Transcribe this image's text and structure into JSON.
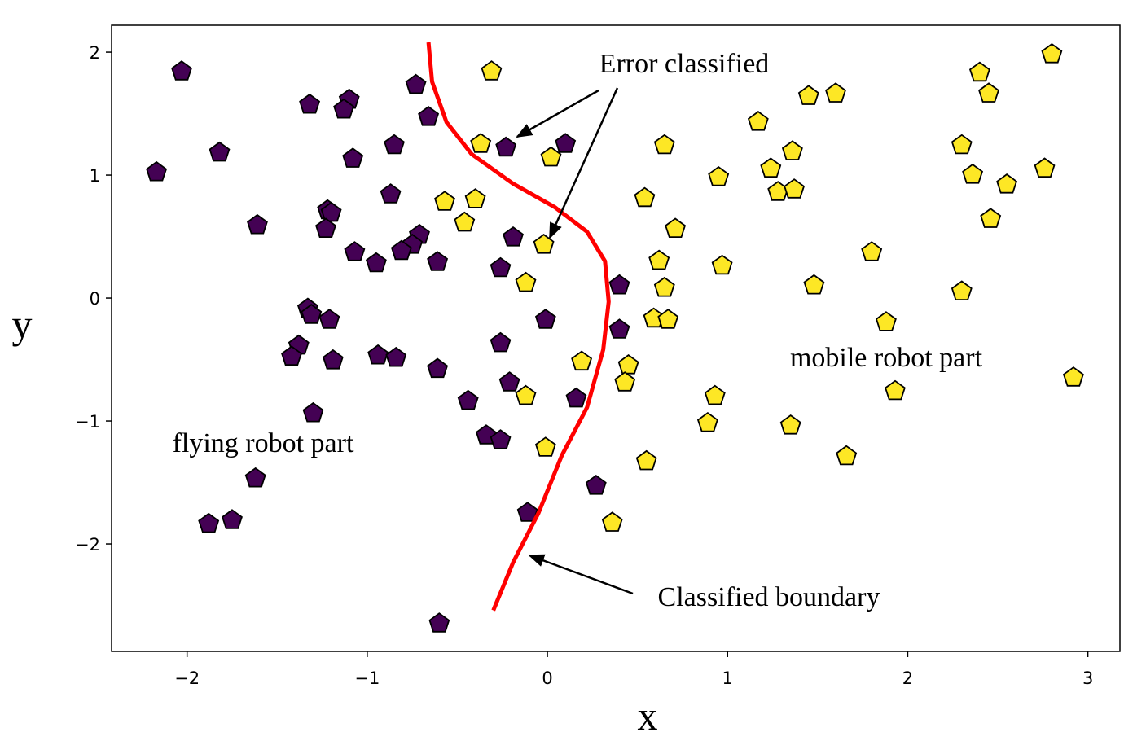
{
  "chart_data": {
    "type": "scatter",
    "x_label": "x",
    "y_label": "y",
    "xlim": [
      -2.419,
      3.178
    ],
    "ylim": [
      -2.874,
      2.219
    ],
    "xticks": [
      {
        "value": -2,
        "label": "−2"
      },
      {
        "value": -1,
        "label": "−1"
      },
      0,
      1,
      2,
      3
    ],
    "yticks": [
      {
        "value": -2,
        "label": "−2"
      },
      {
        "value": -1,
        "label": "−1"
      },
      0,
      1,
      2
    ],
    "annotations": [
      "Error classified",
      "Classified boundary",
      "mobile robot part",
      "flying robot part"
    ],
    "boundary": {
      "color": "#ff0000",
      "x": [
        -0.66,
        -0.64,
        -0.56,
        -0.42,
        -0.19,
        0.04,
        0.22,
        0.32,
        0.34,
        0.31,
        0.22,
        0.08,
        -0.05,
        -0.19,
        -0.3
      ],
      "y": [
        2.08,
        1.76,
        1.43,
        1.17,
        0.93,
        0.74,
        0.54,
        0.3,
        -0.03,
        -0.42,
        -0.89,
        -1.28,
        -1.75,
        -2.15,
        -2.54
      ]
    },
    "series": [
      {
        "color": "#440154",
        "x": [
          -2.03,
          -1.32,
          -1.1,
          -1.13,
          -0.73,
          -0.66,
          -1.82,
          -2.17,
          -0.85,
          -1.08,
          0.1,
          -0.23,
          -0.87,
          -1.22,
          -1.2,
          -1.23,
          -1.61,
          -0.19,
          -0.71,
          -0.75,
          -0.81,
          -1.07,
          -0.95,
          -0.61,
          -0.26,
          0.4,
          -1.33,
          -1.31,
          -1.21,
          -1.38,
          -1.42,
          -0.94,
          -0.84,
          -1.19,
          0.4,
          -0.01,
          -0.26,
          -0.61,
          -0.21,
          0.16,
          -0.44,
          -1.3,
          -0.34,
          -0.26,
          -1.62,
          0.27,
          -1.75,
          -1.88,
          -0.11,
          -0.6
        ],
        "y": [
          1.85,
          1.58,
          1.62,
          1.54,
          1.74,
          1.48,
          1.19,
          1.03,
          1.25,
          1.14,
          1.26,
          1.23,
          0.85,
          0.72,
          0.7,
          0.57,
          0.6,
          0.5,
          0.52,
          0.44,
          0.39,
          0.38,
          0.29,
          0.3,
          0.25,
          0.11,
          -0.08,
          -0.13,
          -0.17,
          -0.38,
          -0.47,
          -0.46,
          -0.48,
          -0.5,
          -0.25,
          -0.17,
          -0.36,
          -0.57,
          -0.68,
          -0.81,
          -0.83,
          -0.93,
          -1.11,
          -1.15,
          -1.46,
          -1.52,
          -1.8,
          -1.83,
          -1.74,
          -2.64
        ]
      },
      {
        "color": "#fde725",
        "x": [
          -0.31,
          2.8,
          2.4,
          2.45,
          1.45,
          1.6,
          1.17,
          -0.37,
          0.02,
          0.65,
          1.36,
          2.3,
          1.24,
          2.36,
          0.95,
          2.55,
          1.28,
          1.37,
          -0.57,
          -0.4,
          0.54,
          -0.46,
          2.46,
          2.76,
          0.71,
          -0.02,
          1.8,
          0.62,
          0.97,
          -0.12,
          0.65,
          1.48,
          2.3,
          0.59,
          0.67,
          1.88,
          0.19,
          0.45,
          0.43,
          2.92,
          1.93,
          -0.12,
          0.93,
          0.89,
          1.35,
          -0.01,
          1.66,
          0.55,
          0.36
        ],
        "y": [
          1.85,
          1.99,
          1.84,
          1.67,
          1.65,
          1.67,
          1.44,
          1.26,
          1.15,
          1.25,
          1.2,
          1.25,
          1.06,
          1.01,
          0.99,
          0.93,
          0.87,
          0.89,
          0.79,
          0.81,
          0.82,
          0.62,
          0.65,
          1.06,
          0.57,
          0.44,
          0.38,
          0.31,
          0.27,
          0.13,
          0.09,
          0.11,
          0.06,
          -0.16,
          -0.17,
          -0.19,
          -0.51,
          -0.54,
          -0.68,
          -0.64,
          -0.75,
          -0.79,
          -0.79,
          -1.01,
          -1.03,
          -1.21,
          -1.28,
          -1.32,
          -1.82
        ]
      }
    ]
  }
}
